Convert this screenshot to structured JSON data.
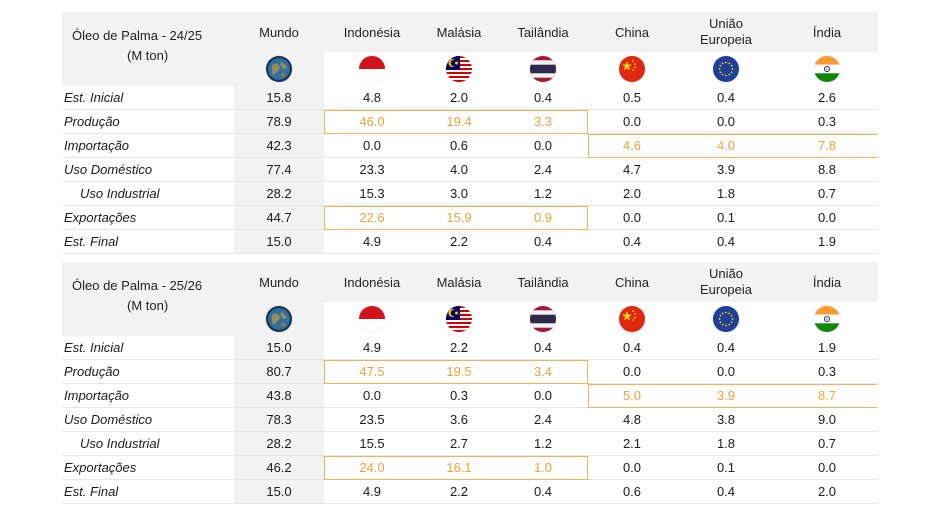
{
  "columns": [
    "Mundo",
    "Indonésia",
    "Malásia",
    "Tailândia",
    "China",
    "União Europeia",
    "Índia"
  ],
  "flag_icons": [
    "globe-icon",
    "indonesia-flag-icon",
    "malaysia-flag-icon",
    "thailand-flag-icon",
    "china-flag-icon",
    "european-union-flag-icon",
    "india-flag-icon"
  ],
  "highlight_color": "#e8a23a",
  "tables": [
    {
      "title": "Óleo de Palma - 24/25",
      "unit": "(M ton)",
      "rows": [
        {
          "label": "Est. Inicial",
          "values": [
            "15.8",
            "4.8",
            "2.0",
            "0.4",
            "0.5",
            "0.4",
            "2.6"
          ]
        },
        {
          "label": "Produção",
          "values": [
            "78.9",
            "46.0",
            "19.4",
            "3.3",
            "0.0",
            "0.0",
            "0.3"
          ]
        },
        {
          "label": "Importação",
          "values": [
            "42.3",
            "0.0",
            "0.6",
            "0.0",
            "4.6",
            "4.0",
            "7.8"
          ]
        },
        {
          "label": "Uso Doméstico",
          "values": [
            "77.4",
            "23.3",
            "4.0",
            "2.4",
            "4.7",
            "3.9",
            "8.8"
          ]
        },
        {
          "label": "Uso Industrial",
          "values": [
            "28.2",
            "15.3",
            "3.0",
            "1.2",
            "2.0",
            "1.8",
            "0.7"
          ]
        },
        {
          "label": "Exportações",
          "values": [
            "44.7",
            "22.6",
            "15.9",
            "0.9",
            "0.0",
            "0.1",
            "0.0"
          ]
        },
        {
          "label": "Est. Final",
          "values": [
            "15.0",
            "4.9",
            "2.2",
            "0.4",
            "0.4",
            "0.4",
            "1.9"
          ]
        }
      ]
    },
    {
      "title": "Óleo de Palma - 25/26",
      "unit": "(M ton)",
      "rows": [
        {
          "label": "Est. Inicial",
          "values": [
            "15.0",
            "4.9",
            "2.2",
            "0.4",
            "0.4",
            "0.4",
            "1.9"
          ]
        },
        {
          "label": "Produção",
          "values": [
            "80.7",
            "47.5",
            "19.5",
            "3.4",
            "0.0",
            "0.0",
            "0.3"
          ]
        },
        {
          "label": "Importação",
          "values": [
            "43.8",
            "0.0",
            "0.3",
            "0.0",
            "5.0",
            "3.9",
            "8.7"
          ]
        },
        {
          "label": "Uso Doméstico",
          "values": [
            "78.3",
            "23.5",
            "3.6",
            "2.4",
            "4.8",
            "3.8",
            "9.0"
          ]
        },
        {
          "label": "Uso Industrial",
          "values": [
            "28.2",
            "15.5",
            "2.7",
            "1.2",
            "2.1",
            "1.8",
            "0.7"
          ]
        },
        {
          "label": "Exportações",
          "values": [
            "46.2",
            "24.0",
            "16.1",
            "1.0",
            "0.0",
            "0.1",
            "0.0"
          ]
        },
        {
          "label": "Est. Final",
          "values": [
            "15.0",
            "4.9",
            "2.2",
            "0.4",
            "0.6",
            "0.4",
            "2.0"
          ]
        }
      ]
    }
  ]
}
